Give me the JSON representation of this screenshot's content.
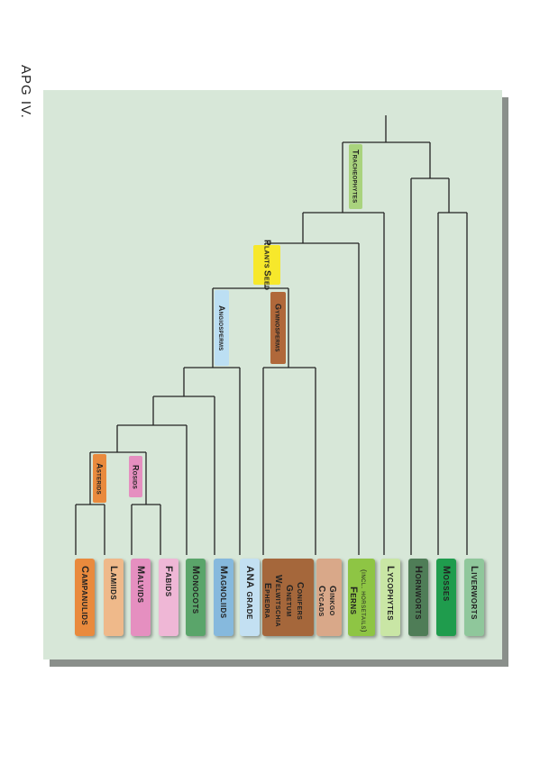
{
  "page_title": "APG IV.",
  "leaves": [
    {
      "id": "campanulids",
      "label": "Campanulids",
      "color": "#e98a3d"
    },
    {
      "id": "lamiids",
      "label": "Lamiids",
      "color": "#efb98a"
    },
    {
      "id": "malvids",
      "label": "Malvids",
      "color": "#e58fc0"
    },
    {
      "id": "fabids",
      "label": "Fabids",
      "color": "#efb7d6"
    },
    {
      "id": "monocots",
      "label": "Monocots",
      "color": "#5aa56a"
    },
    {
      "id": "magnoliids",
      "label": "Magnoliids",
      "color": "#86b9dd"
    },
    {
      "id": "ana",
      "label": "ANA grade",
      "color": "#c3e0f2"
    },
    {
      "id": "conifers",
      "lines": [
        "Ephedra",
        "Welwitschia",
        "Gnetum",
        "Conifers"
      ],
      "color": "#a5673b"
    },
    {
      "id": "cycads",
      "lines": [
        "Cycads",
        "Ginkgo"
      ],
      "color": "#d9a889"
    },
    {
      "id": "ferns",
      "lines": [
        "Ferns",
        "(incl. horsetails)"
      ],
      "color": "#8ec544"
    },
    {
      "id": "lycophytes",
      "label": "Lycophytes",
      "color": "#c9e6a5"
    },
    {
      "id": "hornworts",
      "label": "Hornworts",
      "color": "#4f7d57"
    },
    {
      "id": "mosses",
      "label": "Mosses",
      "color": "#1f9c4d"
    },
    {
      "id": "liverworts",
      "label": "Liverworts",
      "color": "#8fc79b"
    }
  ],
  "clade_labels": {
    "tracheophytes": {
      "label": "Tracheophytes",
      "color": "#a9d37d"
    },
    "seed_plants": {
      "lines": [
        "Seed",
        "Plants"
      ],
      "color": "#f7e82b"
    },
    "angiosperms": {
      "label": "Angiosperms",
      "color": "#bcdff3"
    },
    "gymnosperms": {
      "label": "Gymnosperms",
      "color": "#b0683a"
    },
    "asterids": {
      "label": "Asterids",
      "color": "#e98a3d"
    },
    "rosids": {
      "label": "Rosids",
      "color": "#e58fc0"
    }
  }
}
